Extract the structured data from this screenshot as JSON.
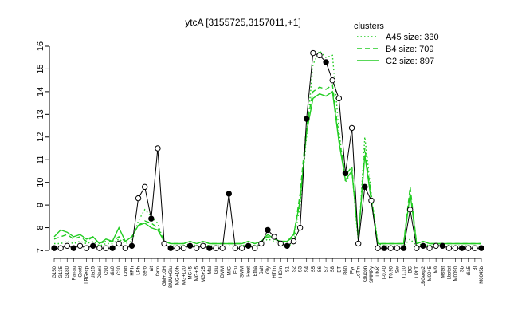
{
  "chart_data": {
    "type": "line",
    "title": "ytcA [3155725,3157011,+1]",
    "xlabel": "",
    "ylabel": "",
    "ylim": [
      7,
      16
    ],
    "yticks": [
      7,
      8,
      9,
      10,
      11,
      12,
      13,
      14,
      15,
      16
    ],
    "grid": false,
    "legend_position": "top-right",
    "legend": {
      "title": "clusters",
      "entries": [
        {
          "label": "A45 size: 330",
          "style": "dotted",
          "color": "#22cc22"
        },
        {
          "label": "B4 size: 709",
          "style": "dashed",
          "color": "#22cc22"
        },
        {
          "label": "C2 size: 897",
          "style": "solid",
          "color": "#22cc22"
        }
      ]
    },
    "categories": [
      "G150",
      "G135",
      "G180",
      "Pairaq",
      "Oxctl",
      "LBGexp",
      "dia15",
      "Diami",
      "C90",
      "dia0",
      "C30",
      "Cold",
      "HPh",
      "LPh",
      "aero",
      "nit",
      "ferm",
      "GM+10H",
      "BMM+Glu",
      "MG+10h",
      "MG+120",
      "MG+5",
      "MG+t5",
      "MG+25",
      "Mal",
      "Glu",
      "BMM",
      "M/G",
      "Fru",
      "SMM",
      "Heat",
      "Etha",
      "Salt",
      "Gly",
      "HTIm",
      "HGIn",
      "S1",
      "S2",
      "S3",
      "S4",
      "S5",
      "S6",
      "S7",
      "S8",
      "BT",
      "B60",
      "Pyr",
      "LoTm",
      "Glucon",
      "SMMPy",
      "UNK",
      "T-0.40",
      "T0.90",
      "Sw",
      "T1.10",
      "BC",
      "LPhT",
      "LBGexp2",
      "M0045",
      "M9",
      "Mstat",
      "Lbstat",
      "M0090",
      "Sb",
      "dia5",
      "Bl",
      "M0045b"
    ],
    "series": [
      {
        "name": "A45 size: 330",
        "style": "dotted",
        "values": [
          7.3,
          7.3,
          7.4,
          7.3,
          7.4,
          7.3,
          7.4,
          7.2,
          7.3,
          7.3,
          7.5,
          7.3,
          7.4,
          8.3,
          8.8,
          8.5,
          8.2,
          7.3,
          7.2,
          7.2,
          7.2,
          7.3,
          7.2,
          7.3,
          7.2,
          7.2,
          7.2,
          7.2,
          7.2,
          7.2,
          7.3,
          7.2,
          7.3,
          7.5,
          7.4,
          7.3,
          7.2,
          7.3,
          9.0,
          12.0,
          15.2,
          15.8,
          15.5,
          15.6,
          12.3,
          10.0,
          10.5,
          7.3,
          12.0,
          9.5,
          7.3,
          7.2,
          7.2,
          7.2,
          7.2,
          7.5,
          7.2,
          7.3,
          7.2,
          7.3,
          7.3,
          7.2,
          7.2,
          7.2,
          7.2,
          7.2,
          7.2
        ]
      },
      {
        "name": "B4 size: 709",
        "style": "dashed",
        "values": [
          7.5,
          7.6,
          7.7,
          7.5,
          7.6,
          7.4,
          7.6,
          7.3,
          7.4,
          7.4,
          7.6,
          7.4,
          7.6,
          8.1,
          8.3,
          8.2,
          8.0,
          7.4,
          7.3,
          7.3,
          7.3,
          7.4,
          7.3,
          7.4,
          7.3,
          7.3,
          7.3,
          7.3,
          7.3,
          7.3,
          7.4,
          7.3,
          7.4,
          7.6,
          7.5,
          7.4,
          7.4,
          7.6,
          9.5,
          12.5,
          14.0,
          14.2,
          14.1,
          14.3,
          12.0,
          10.3,
          10.7,
          7.5,
          11.5,
          9.4,
          7.3,
          7.3,
          7.3,
          7.3,
          7.3,
          9.8,
          7.3,
          7.4,
          7.3,
          7.3,
          7.3,
          7.3,
          7.3,
          7.3,
          7.3,
          7.3,
          7.3
        ]
      },
      {
        "name": "C2 size: 897",
        "style": "solid",
        "values": [
          7.6,
          7.9,
          7.8,
          7.6,
          7.7,
          7.5,
          7.6,
          7.3,
          7.5,
          7.4,
          8.0,
          7.4,
          7.6,
          8.1,
          8.2,
          8.0,
          7.9,
          7.4,
          7.3,
          7.3,
          7.3,
          7.4,
          7.3,
          7.4,
          7.3,
          7.3,
          7.3,
          7.3,
          7.3,
          7.3,
          7.4,
          7.3,
          7.4,
          7.7,
          7.5,
          7.4,
          7.4,
          7.7,
          9.2,
          12.2,
          13.7,
          13.9,
          13.8,
          14.0,
          11.8,
          10.1,
          10.5,
          7.5,
          11.2,
          9.2,
          7.3,
          7.3,
          7.3,
          7.3,
          7.3,
          9.5,
          7.3,
          7.4,
          7.3,
          7.3,
          7.3,
          7.3,
          7.3,
          7.3,
          7.3,
          7.3,
          7.3
        ]
      },
      {
        "name": "",
        "style": "points",
        "values": [
          7.1,
          7.1,
          7.2,
          7.1,
          7.2,
          7.1,
          7.2,
          7.1,
          7.1,
          7.1,
          7.3,
          7.1,
          7.2,
          9.3,
          9.8,
          8.4,
          11.5,
          7.3,
          7.1,
          7.1,
          7.1,
          7.2,
          7.1,
          7.2,
          7.1,
          7.1,
          7.1,
          9.5,
          7.1,
          7.1,
          7.2,
          7.1,
          7.3,
          7.9,
          7.6,
          7.3,
          7.2,
          7.4,
          8.0,
          12.8,
          15.7,
          15.6,
          15.3,
          14.5,
          13.7,
          10.4,
          12.4,
          7.3,
          9.8,
          9.2,
          7.1,
          7.1,
          7.1,
          7.1,
          7.1,
          8.8,
          7.1,
          7.2,
          7.1,
          7.2,
          7.2,
          7.1,
          7.1,
          7.1,
          7.1,
          7.1,
          7.1
        ]
      }
    ]
  }
}
